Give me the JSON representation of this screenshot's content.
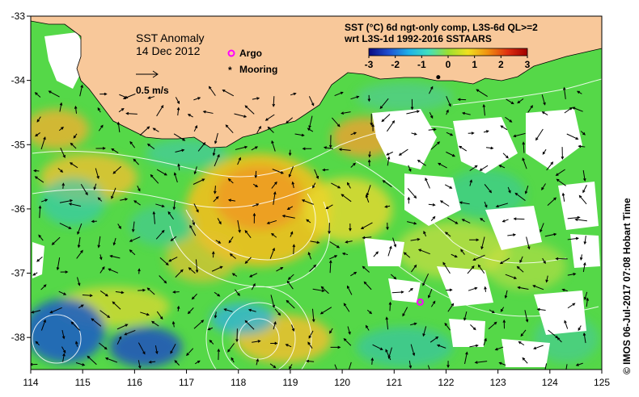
{
  "map": {
    "title": "SST Anomaly",
    "date": "14 Dec 2012",
    "vector_scale_label": "0.5 m/s",
    "legend": {
      "argo_label": "Argo",
      "mooring_label": "Mooring",
      "argo_color": "#ff00ff",
      "mooring_color": "#000000"
    },
    "colorbar": {
      "title_line1": "SST (°C) 6d ngt-only comp, L3S-6d QL>=2",
      "title_line2": "wrt L3S-1d 1992-2016 SSTAARS",
      "ticks": [
        "-3",
        "-2",
        "-1",
        "0",
        "1",
        "2",
        "3"
      ],
      "stops": [
        "#0a0a80",
        "#1f4fd0",
        "#1fb0e8",
        "#40e0c0",
        "#9be030",
        "#f0e020",
        "#f09010",
        "#e03010",
        "#a00000"
      ]
    },
    "x_ticks": [
      "114",
      "115",
      "116",
      "117",
      "118",
      "119",
      "120",
      "121",
      "122",
      "123",
      "124",
      "125"
    ],
    "y_ticks": [
      "-33",
      "-34",
      "-35",
      "-36",
      "-37",
      "-38"
    ],
    "credit": "© IMOS 06-Jul-2017 07:08 Hobart Time",
    "extent": {
      "lon_min": 114,
      "lon_max": 125,
      "lat_min": -38.5,
      "lat_max": -33
    },
    "argo_positions": [
      [
        121.5,
        -37.45
      ]
    ],
    "mooring_positions": [
      [
        121.85,
        -33.95
      ]
    ],
    "colors": {
      "land": "#f8c89a",
      "no_data": "#ffffff",
      "background_field": "#55d848"
    }
  }
}
